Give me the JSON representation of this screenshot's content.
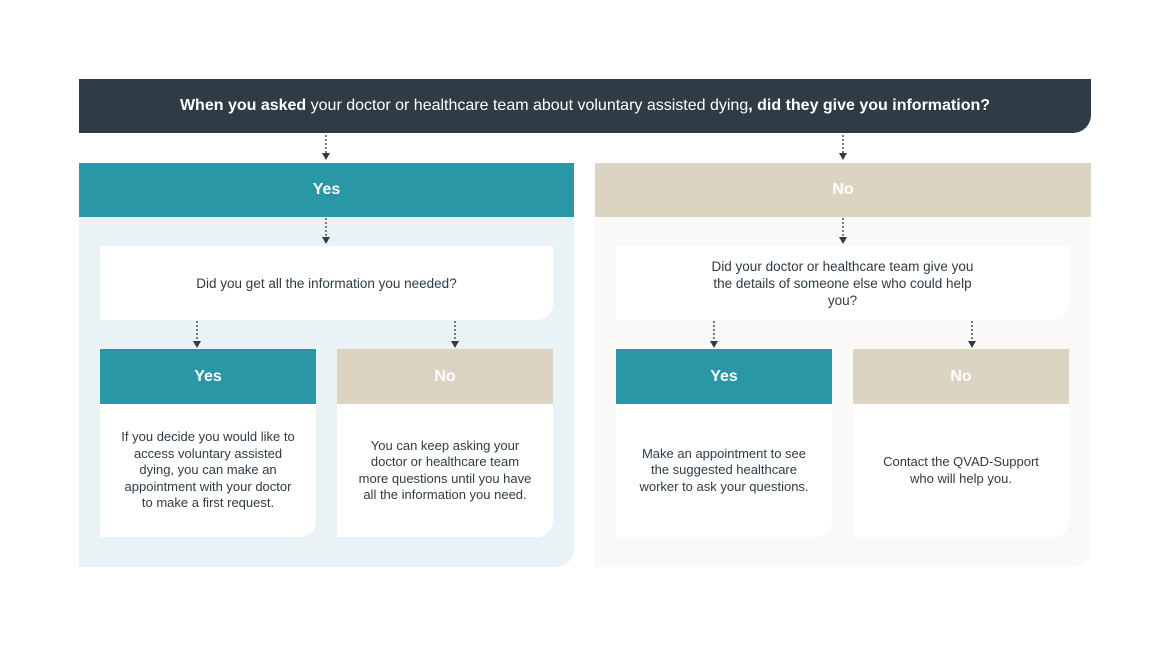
{
  "header": {
    "part1_bold": "When you asked",
    "part2": " your doctor or healthcare team about voluntary assisted dying",
    "part3_bold": ", did they give you information?"
  },
  "colors": {
    "dark": "#2f3b45",
    "teal": "#2a97a6",
    "beige": "#dcd4c3",
    "light_teal_bg": "#e9f2f4",
    "light_beige_bg": "#faf9f7"
  },
  "left": {
    "label": "Yes",
    "question": "Did you get all the information you needed?",
    "yes": {
      "label": "Yes",
      "text": "If you decide you would like to access voluntary assisted dying, you can make an appointment with your doctor to make a first request."
    },
    "no": {
      "label": "No",
      "text": "You can keep asking your doctor or healthcare team more questions until you have all the information you need."
    }
  },
  "right": {
    "label": "No",
    "question": "Did your doctor or healthcare team give you the details of someone else who could help you?",
    "yes": {
      "label": "Yes",
      "text": "Make an appointment to see the suggested healthcare worker to ask your questions."
    },
    "no": {
      "label": "No",
      "text": "Contact the QVAD-Support who will help you."
    }
  },
  "icons": {
    "connector": "dotted-arrow-down-icon"
  }
}
